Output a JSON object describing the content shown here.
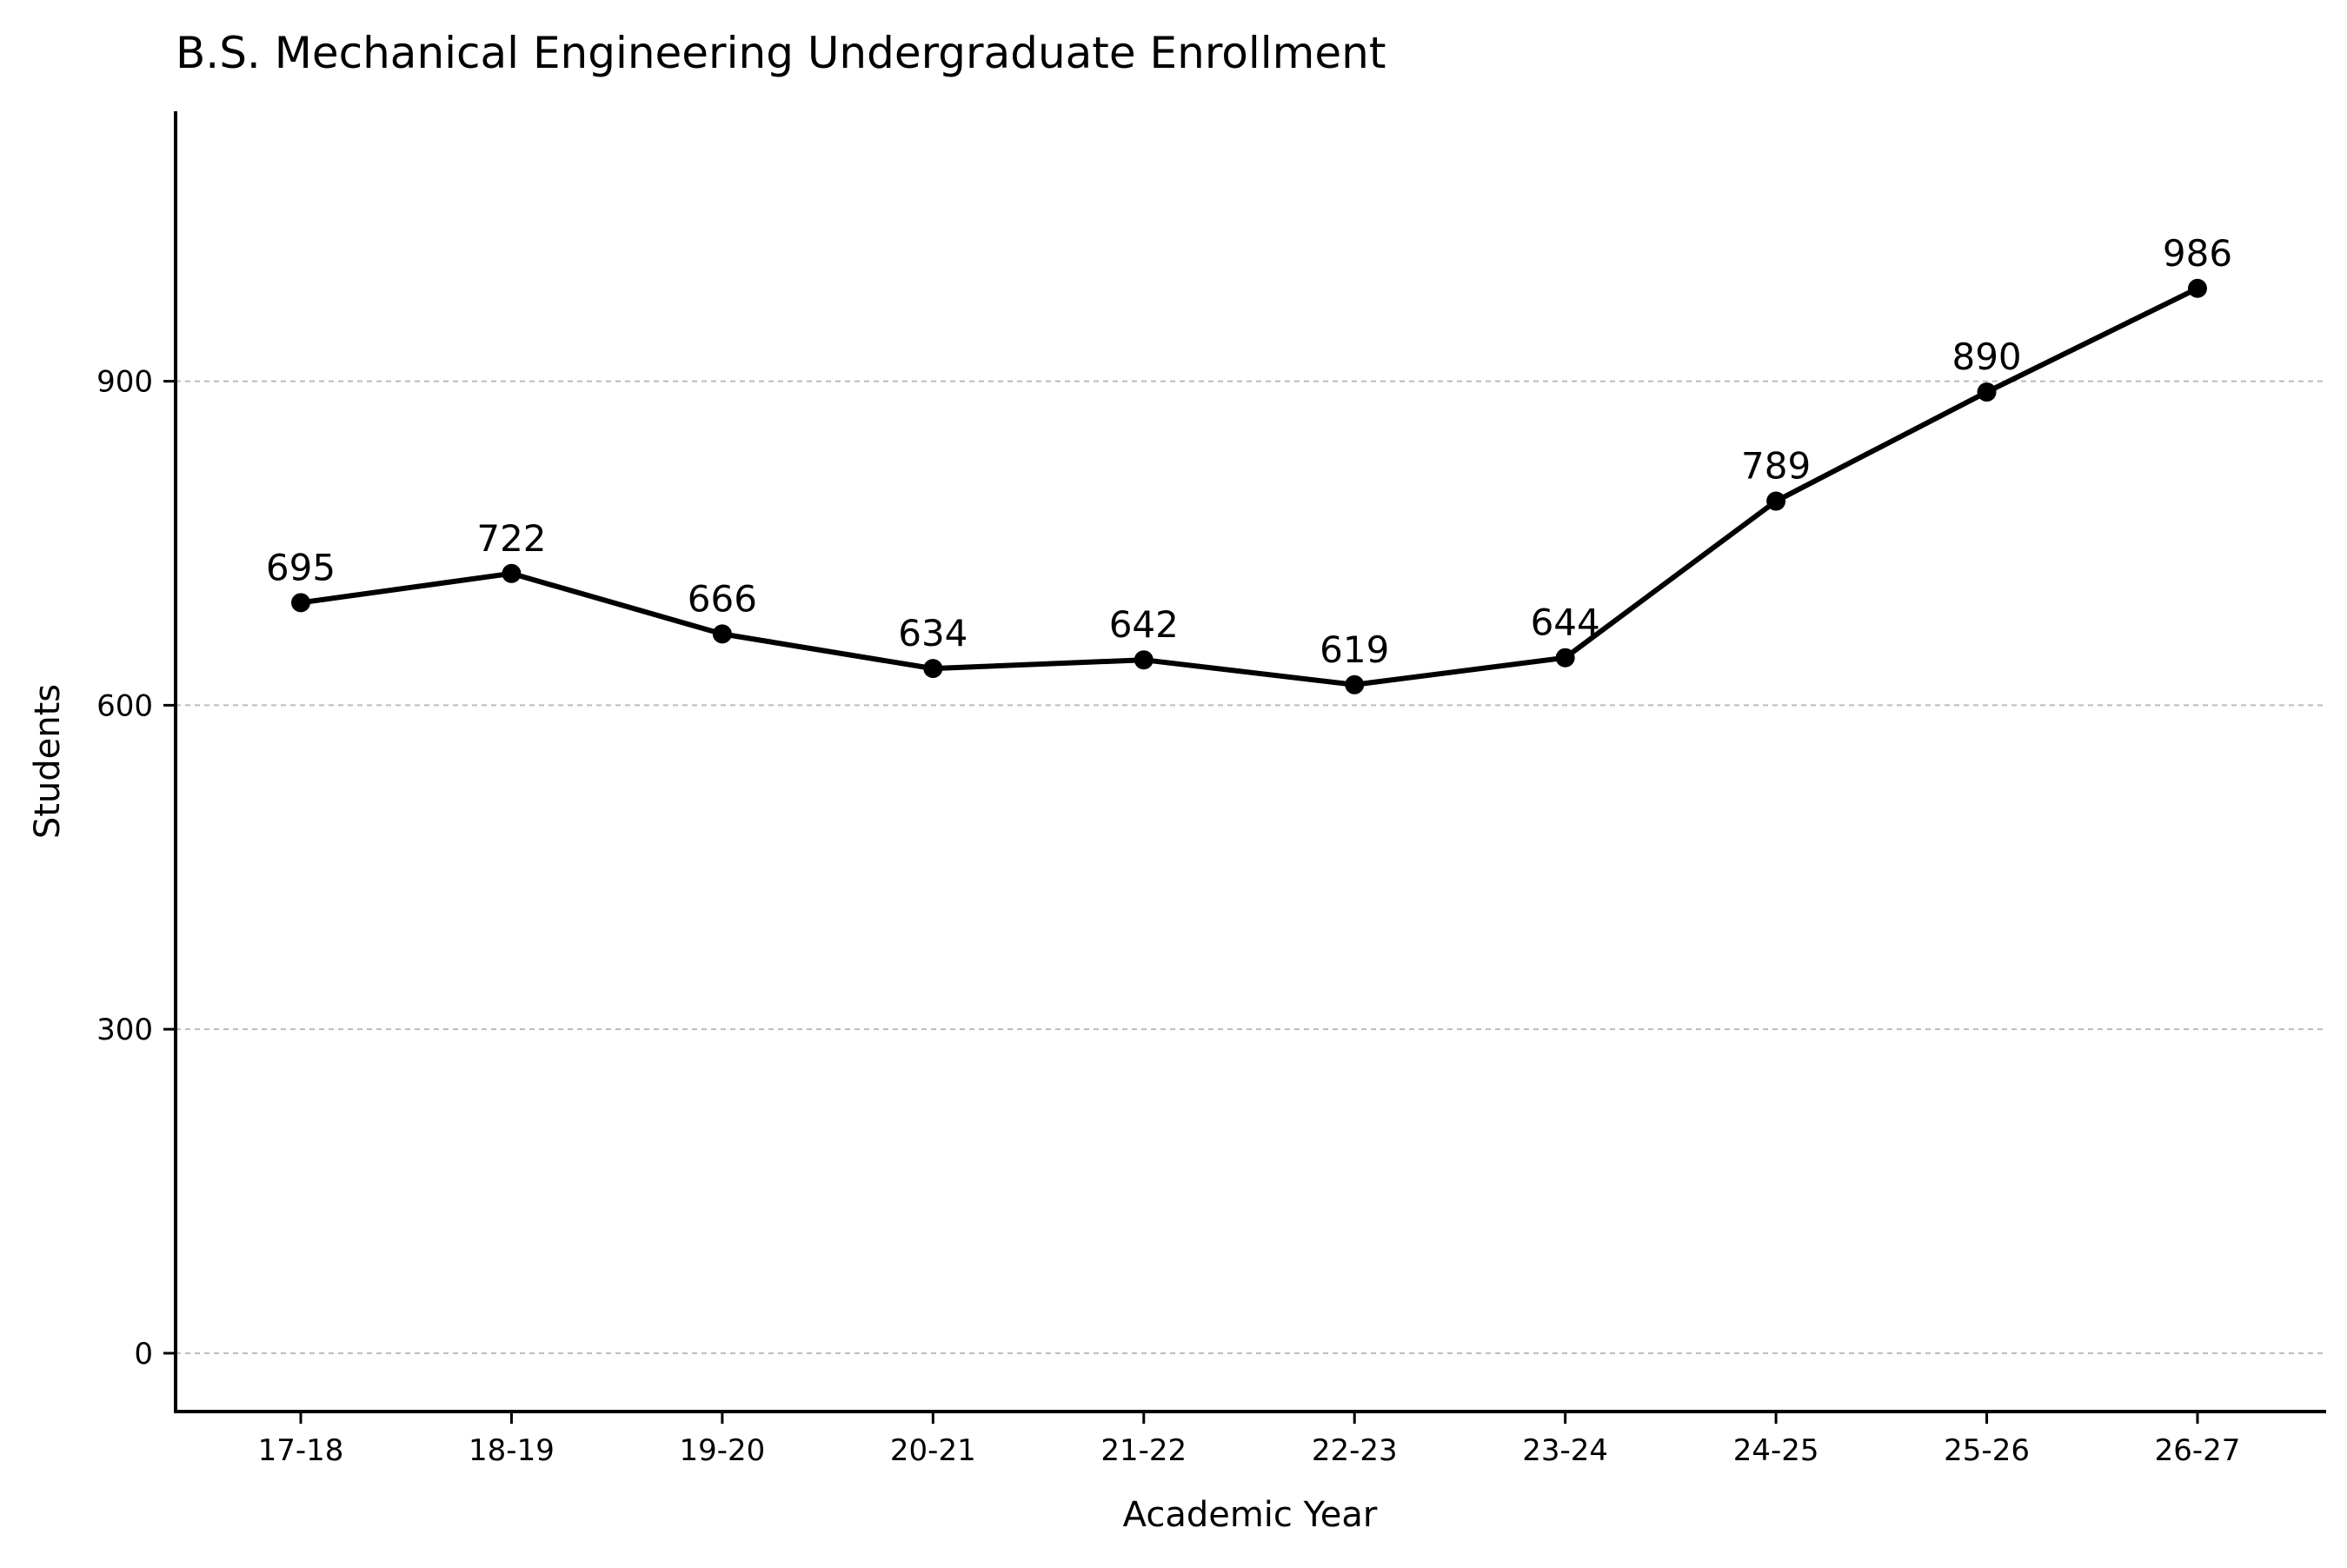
{
  "chart_data": {
    "type": "line",
    "title": "B.S. Mechanical Engineering Undergraduate Enrollment",
    "xlabel": "Academic Year",
    "ylabel": "Students",
    "categories": [
      "17-18",
      "18-19",
      "19-20",
      "20-21",
      "21-22",
      "22-23",
      "23-24",
      "24-25",
      "25-26",
      "26-27"
    ],
    "series": [
      {
        "values": [
          695,
          722,
          666,
          634,
          642,
          619,
          644,
          789,
          890,
          986
        ],
        "color": "#000000"
      }
    ],
    "yticks": [
      0,
      300,
      600,
      900
    ],
    "ylim": [
      -54,
      1150
    ],
    "grid": "horizontal dashed",
    "legend": "none",
    "data_labels": true
  }
}
